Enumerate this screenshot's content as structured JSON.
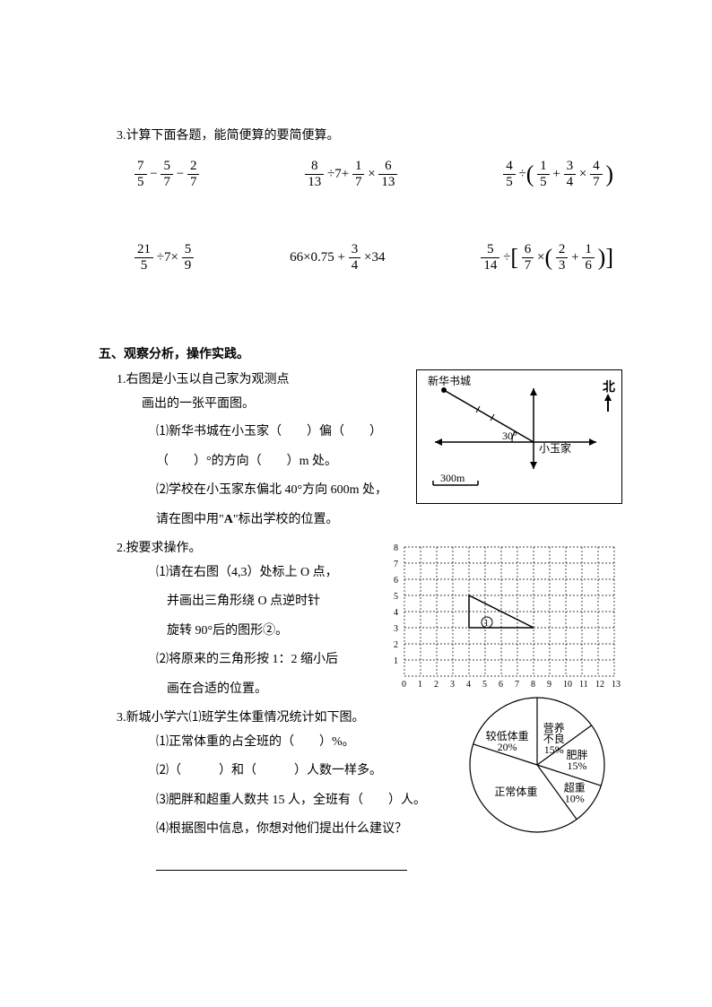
{
  "q3": {
    "title": "3.计算下面各题，能简便算的要简便算。",
    "row1": {
      "e1": {
        "f1n": "7",
        "f1d": "5",
        "op1": "−",
        "f2n": "5",
        "f2d": "7",
        "op2": "−",
        "f3n": "2",
        "f3d": "7"
      },
      "e2": {
        "f1n": "8",
        "f1d": "13",
        "op1": "÷7+",
        "f2n": "1",
        "f2d": "7",
        "op2": "×",
        "f3n": "6",
        "f3d": "13"
      },
      "e3": {
        "f1n": "4",
        "f1d": "5",
        "op1": "÷",
        "f2n": "1",
        "f2d": "5",
        "op2": "+",
        "f3n": "3",
        "f3d": "4",
        "op3": "×",
        "f4n": "4",
        "f4d": "7"
      }
    },
    "row2": {
      "e1": {
        "f1n": "21",
        "f1d": "5",
        "op1": "÷7×",
        "f2n": "5",
        "f2d": "9"
      },
      "e2": {
        "pre": "66×0.75 +",
        "f1n": "3",
        "f1d": "4",
        "post": "×34"
      },
      "e3": {
        "f1n": "5",
        "f1d": "14",
        "op1": "÷",
        "f2n": "6",
        "f2d": "7",
        "op2": "×",
        "f3n": "2",
        "f3d": "3",
        "op3": "+",
        "f4n": "1",
        "f4d": "6"
      }
    }
  },
  "s5": {
    "title": "五、观察分析，操作实践。",
    "q1": {
      "l1": "1.右图是小玉以自己家为观测点",
      "l2": "画出的一张平面图。",
      "l3": "⑴新华书城在小玉家（　　）偏（　　）",
      "l4": "（　　）°的方向（　　）m 处。",
      "l5": "⑵学校在小玉家东偏北 40°方向 600m 处，",
      "l6": "请在图中用\"A\"标出学校的位置。"
    },
    "fig1": {
      "label1": "新华书城",
      "angle": "30°",
      "center": "小玉家",
      "scale": "300m",
      "north": "北"
    },
    "q2": {
      "l1": "2.按要求操作。",
      "l2": "⑴请在右图（4,3）处标上 O 点，",
      "l3": "并画出三角形绕 O 点逆时针",
      "l4": "旋转 90°后的图形②。",
      "l5": "⑵将原来的三角形按 1：2 缩小后",
      "l6": "画在合适的位置。"
    },
    "grid": {
      "xmax": 13,
      "ymax": 8,
      "cell": 18,
      "triangle": [
        [
          4,
          3
        ],
        [
          4,
          5
        ],
        [
          8,
          3
        ]
      ],
      "circled": "①",
      "xlabels": [
        "0",
        "1",
        "2",
        "3",
        "4",
        "5",
        "6",
        "7",
        "8",
        "9",
        "10",
        "11",
        "12",
        "13"
      ],
      "ylabels": [
        "1",
        "2",
        "3",
        "4",
        "5",
        "6",
        "7",
        "8"
      ]
    },
    "q3": {
      "l1": "3.新城小学六⑴班学生体重情况统计如下图。",
      "l2": "⑴正常体重的占全班的（　　）%。",
      "l3": "⑵（　　　）和（　　　）人数一样多。",
      "l4": "⑶肥胖和超重人数共 15 人，全班有（　　）人。",
      "l5": "⑷根据图中信息，你想对他们提出什么建议？"
    },
    "pie": {
      "slices": [
        {
          "label": "营养\n不良",
          "pct": "15%"
        },
        {
          "label": "肥胖",
          "pct": "15%"
        },
        {
          "label": "超重",
          "pct": "10%"
        },
        {
          "label": "正常体重",
          "pct": ""
        },
        {
          "label": "较低体重",
          "pct": "20%"
        }
      ]
    }
  }
}
